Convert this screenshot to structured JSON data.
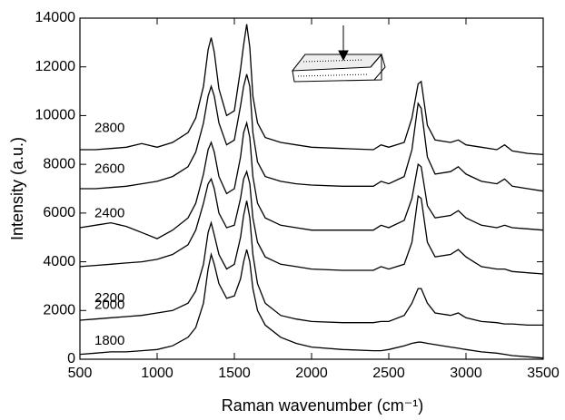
{
  "chart_data": {
    "type": "line",
    "xlabel": "Raman wavenumber (cm⁻¹)",
    "ylabel": "Intensity (a.u.)",
    "xlim": [
      500,
      3500
    ],
    "xticks": [
      500,
      1000,
      1500,
      2000,
      2500,
      3000,
      3500
    ],
    "ylim": [
      0,
      14000
    ],
    "yticks": [
      0,
      2000,
      4000,
      6000,
      8000,
      10000,
      12000,
      14000
    ],
    "grid": false,
    "x": [
      500,
      600,
      700,
      800,
      900,
      1000,
      1100,
      1200,
      1250,
      1300,
      1330,
      1350,
      1370,
      1400,
      1450,
      1500,
      1540,
      1560,
      1580,
      1600,
      1620,
      1650,
      1700,
      1800,
      1900,
      2000,
      2200,
      2400,
      2450,
      2500,
      2600,
      2650,
      2690,
      2710,
      2750,
      2800,
      2900,
      2950,
      3000,
      3100,
      3200,
      3250,
      3300,
      3400,
      3500
    ],
    "series": [
      {
        "name": "1800",
        "color": "#000000",
        "values": [
          200,
          250,
          300,
          300,
          350,
          400,
          550,
          900,
          1300,
          2300,
          3700,
          4300,
          3900,
          3100,
          2500,
          2600,
          3300,
          4000,
          4500,
          4000,
          2900,
          2000,
          1400,
          900,
          650,
          500,
          400,
          350,
          350,
          400,
          550,
          650,
          700,
          700,
          650,
          600,
          500,
          450,
          400,
          300,
          250,
          200,
          150,
          100,
          50
        ]
      },
      {
        "name": "2000",
        "color": "#000000",
        "values": [
          1600,
          1650,
          1700,
          1750,
          1800,
          1900,
          2000,
          2300,
          2800,
          3900,
          5200,
          5600,
          5100,
          4300,
          3700,
          3900,
          5000,
          5900,
          6500,
          5800,
          4300,
          3100,
          2300,
          1800,
          1650,
          1550,
          1500,
          1500,
          1550,
          1550,
          1800,
          2300,
          2900,
          2900,
          2300,
          1900,
          1800,
          1900,
          1700,
          1550,
          1500,
          1450,
          1450,
          1400,
          1400
        ]
      },
      {
        "name": "2200",
        "color": "#000000",
        "values": [
          3800,
          3850,
          3900,
          3950,
          4000,
          4100,
          4300,
          4700,
          5300,
          6400,
          7200,
          7400,
          7000,
          6000,
          5400,
          5500,
          6600,
          7400,
          7700,
          7200,
          5800,
          4800,
          4200,
          3900,
          3800,
          3700,
          3650,
          3650,
          3800,
          3700,
          3900,
          4800,
          6700,
          6600,
          4800,
          4200,
          4300,
          4500,
          4200,
          3800,
          3700,
          3700,
          3600,
          3550,
          3500
        ]
      },
      {
        "name": "2400",
        "color": "#000000",
        "values": [
          5400,
          5500,
          5600,
          5450,
          5200,
          4950,
          5300,
          5800,
          6400,
          7600,
          8600,
          8900,
          8500,
          7500,
          6800,
          7000,
          8300,
          9300,
          9700,
          9100,
          7500,
          6400,
          5800,
          5500,
          5400,
          5300,
          5300,
          5300,
          5500,
          5400,
          5700,
          6600,
          8000,
          7900,
          6300,
          5800,
          5900,
          6100,
          5800,
          5500,
          5400,
          5500,
          5400,
          5350,
          5300
        ]
      },
      {
        "name": "2600",
        "color": "#000000",
        "values": [
          7000,
          7000,
          7050,
          7100,
          7200,
          7300,
          7500,
          7900,
          8500,
          9700,
          10800,
          11200,
          10800,
          9700,
          8800,
          9000,
          10400,
          11200,
          11700,
          11200,
          9300,
          8100,
          7500,
          7300,
          7200,
          7150,
          7100,
          7100,
          7300,
          7200,
          7500,
          8600,
          10500,
          10300,
          8300,
          7600,
          7700,
          7900,
          7600,
          7300,
          7200,
          7400,
          7100,
          7000,
          6900
        ]
      },
      {
        "name": "2800",
        "color": "#000000",
        "values": [
          8600,
          8600,
          8650,
          8700,
          8850,
          8700,
          8900,
          9300,
          9900,
          11200,
          12700,
          13200,
          12600,
          11100,
          10000,
          10200,
          11900,
          12900,
          13750,
          12800,
          10800,
          9700,
          9100,
          8900,
          8800,
          8700,
          8650,
          8600,
          8800,
          8700,
          8900,
          9900,
          11300,
          11400,
          9600,
          9000,
          8900,
          9000,
          8800,
          8700,
          8600,
          8800,
          8550,
          8450,
          8400
        ]
      }
    ]
  }
}
